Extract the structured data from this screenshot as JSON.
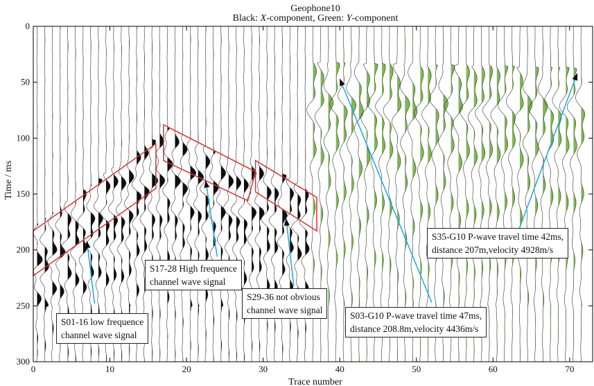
{
  "chart_data": {
    "type": "seismogram",
    "title_line1": "Geophone10",
    "title_line2_prefix": "Black: ",
    "title_x_var": "X",
    "title_line2_mid": "-component, Green: ",
    "title_y_var": "Y",
    "title_line2_suffix": "-component",
    "xlabel": "Trace number",
    "ylabel": "Time / ms",
    "xlim": [
      0,
      73
    ],
    "ylim": [
      0,
      300
    ],
    "y_inverted": true,
    "x_ticks": [
      0,
      10,
      20,
      30,
      40,
      50,
      60,
      70
    ],
    "y_ticks": [
      0,
      50,
      100,
      150,
      200,
      250,
      300
    ],
    "num_traces": 72,
    "series": [
      {
        "name": "X-component",
        "color": "#000000",
        "traces": [
          1,
          36
        ]
      },
      {
        "name": "Y-component",
        "color": "#6aaa3a",
        "traces": [
          37,
          72
        ]
      }
    ],
    "regions": [
      {
        "name": "S01-16 low frequence channel wave",
        "color": "#e03030",
        "polygon": [
          [
            0,
            183
          ],
          [
            16,
            105
          ],
          [
            16,
            145
          ],
          [
            0,
            223
          ]
        ]
      },
      {
        "name": "S17-28 high frequence channel wave",
        "color": "#e03030",
        "polygon": [
          [
            17,
            88
          ],
          [
            29,
            130
          ],
          [
            28,
            156
          ],
          [
            17,
            120
          ]
        ]
      },
      {
        "name": "S29-36 not obvious channel wave",
        "color": "#e03030",
        "polygon": [
          [
            29,
            120
          ],
          [
            37,
            153
          ],
          [
            37,
            183
          ],
          [
            29,
            148
          ]
        ]
      }
    ],
    "arrows_color": "#1aa9dc",
    "annotations": [
      {
        "id": "s01",
        "lines": [
          "S01-16 low frequence",
          "channel wave signal"
        ],
        "arrow_from": [
          8,
          248
        ],
        "arrow_to": [
          7,
          192
        ]
      },
      {
        "id": "s17",
        "lines": [
          "S17-28 High frequence",
          "channel wave signal"
        ],
        "arrow_from": [
          24,
          206
        ],
        "arrow_to": [
          22.5,
          138
        ]
      },
      {
        "id": "s29",
        "lines": [
          "S29-36  not obvious",
          "channel wave signal"
        ],
        "arrow_from": [
          34,
          232
        ],
        "arrow_to": [
          33,
          172
        ]
      },
      {
        "id": "s03",
        "lines": [
          "S03-G10 P-wave travel time 47ms,",
          "distance 208.8m,velocity 4436m/s"
        ],
        "arrow_from": [
          52,
          247
        ],
        "arrow_to": [
          40,
          47
        ]
      },
      {
        "id": "s35",
        "lines": [
          "S35-G10 P-wave travel time 42ms,",
          "distance 207m,velocity 4928m/s"
        ],
        "arrow_from": [
          62,
          207
        ],
        "arrow_to": [
          71,
          42
        ]
      }
    ]
  }
}
